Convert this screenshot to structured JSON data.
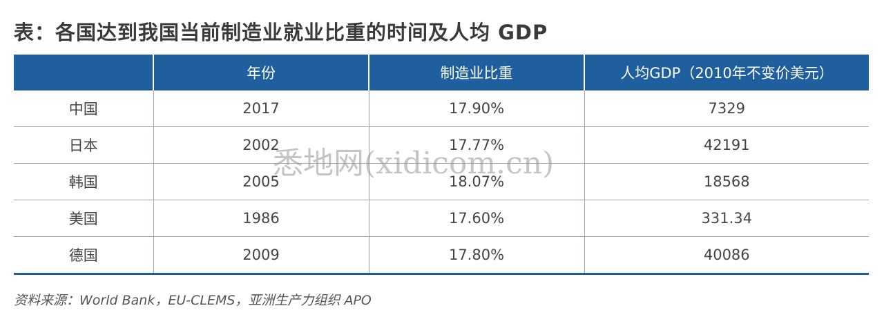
{
  "title": "表：各国达到我国当前制造业就业比重的时间及人均 GDP",
  "table": {
    "headers": [
      "",
      "年份",
      "制造业比重",
      "人均GDP（2010年不变价美元）"
    ],
    "rows": [
      [
        "中国",
        "2017",
        "17.90%",
        "7329"
      ],
      [
        "日本",
        "2002",
        "17.77%",
        "42191"
      ],
      [
        "韩国",
        "2005",
        "18.07%",
        "18568"
      ],
      [
        "美国",
        "1986",
        "17.60%",
        "331.34"
      ],
      [
        "德国",
        "2009",
        "17.80%",
        "40086"
      ]
    ]
  },
  "source": "资料来源：World Bank，EU-CLEMS，亚洲生产力组织 APO",
  "watermark": "悉地网(xidicom.cn)"
}
